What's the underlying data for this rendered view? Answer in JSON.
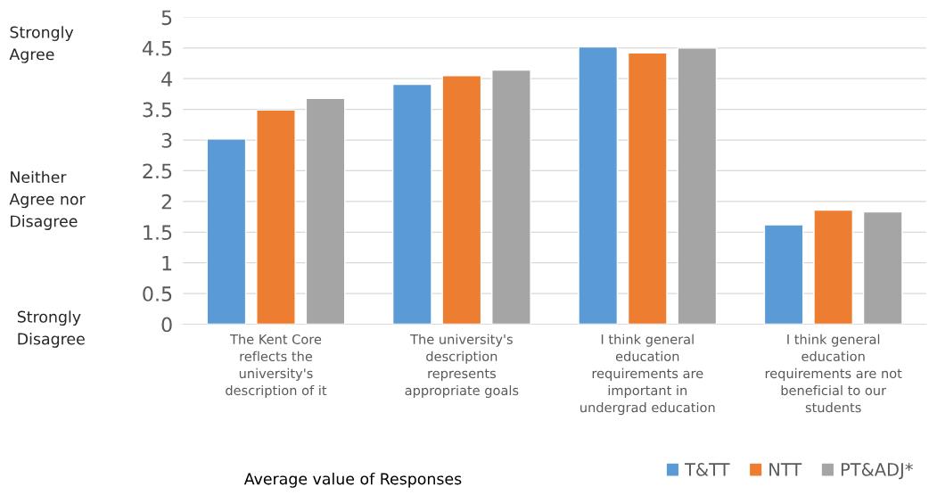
{
  "chart_data": {
    "type": "bar",
    "xlabel": "Average value of Responses",
    "categories": [
      "The Kent Core\nreflects the\nuniversity's\ndescription of it",
      "The university's\ndescription\nrepresents\nappropriate goals",
      "I think general\neducation\nrequirements are\nimportant in\nundergrad education",
      "I think general\neducation\nrequirements are not\nbeneficial to our\nstudents"
    ],
    "series": [
      {
        "name": "T&TT",
        "color": "#5b9bd5",
        "values": [
          3.02,
          3.91,
          4.52,
          1.62
        ]
      },
      {
        "name": "NTT",
        "color": "#ed7d31",
        "values": [
          3.49,
          4.05,
          4.42,
          1.86
        ]
      },
      {
        "name": "PT&ADJ*",
        "color": "#a5a5a5",
        "values": [
          3.68,
          4.14,
          4.5,
          1.83
        ]
      }
    ],
    "ylim": [
      0,
      5
    ],
    "yticks": [
      0,
      0.5,
      1,
      1.5,
      2,
      2.5,
      3,
      3.5,
      4,
      4.5,
      5
    ],
    "grid": "y",
    "legend": "bottom right",
    "annotations": [
      "Strongly\nAgree",
      "Neither\nAgree nor\nDisagree",
      "Strongly\nDisagree"
    ]
  }
}
